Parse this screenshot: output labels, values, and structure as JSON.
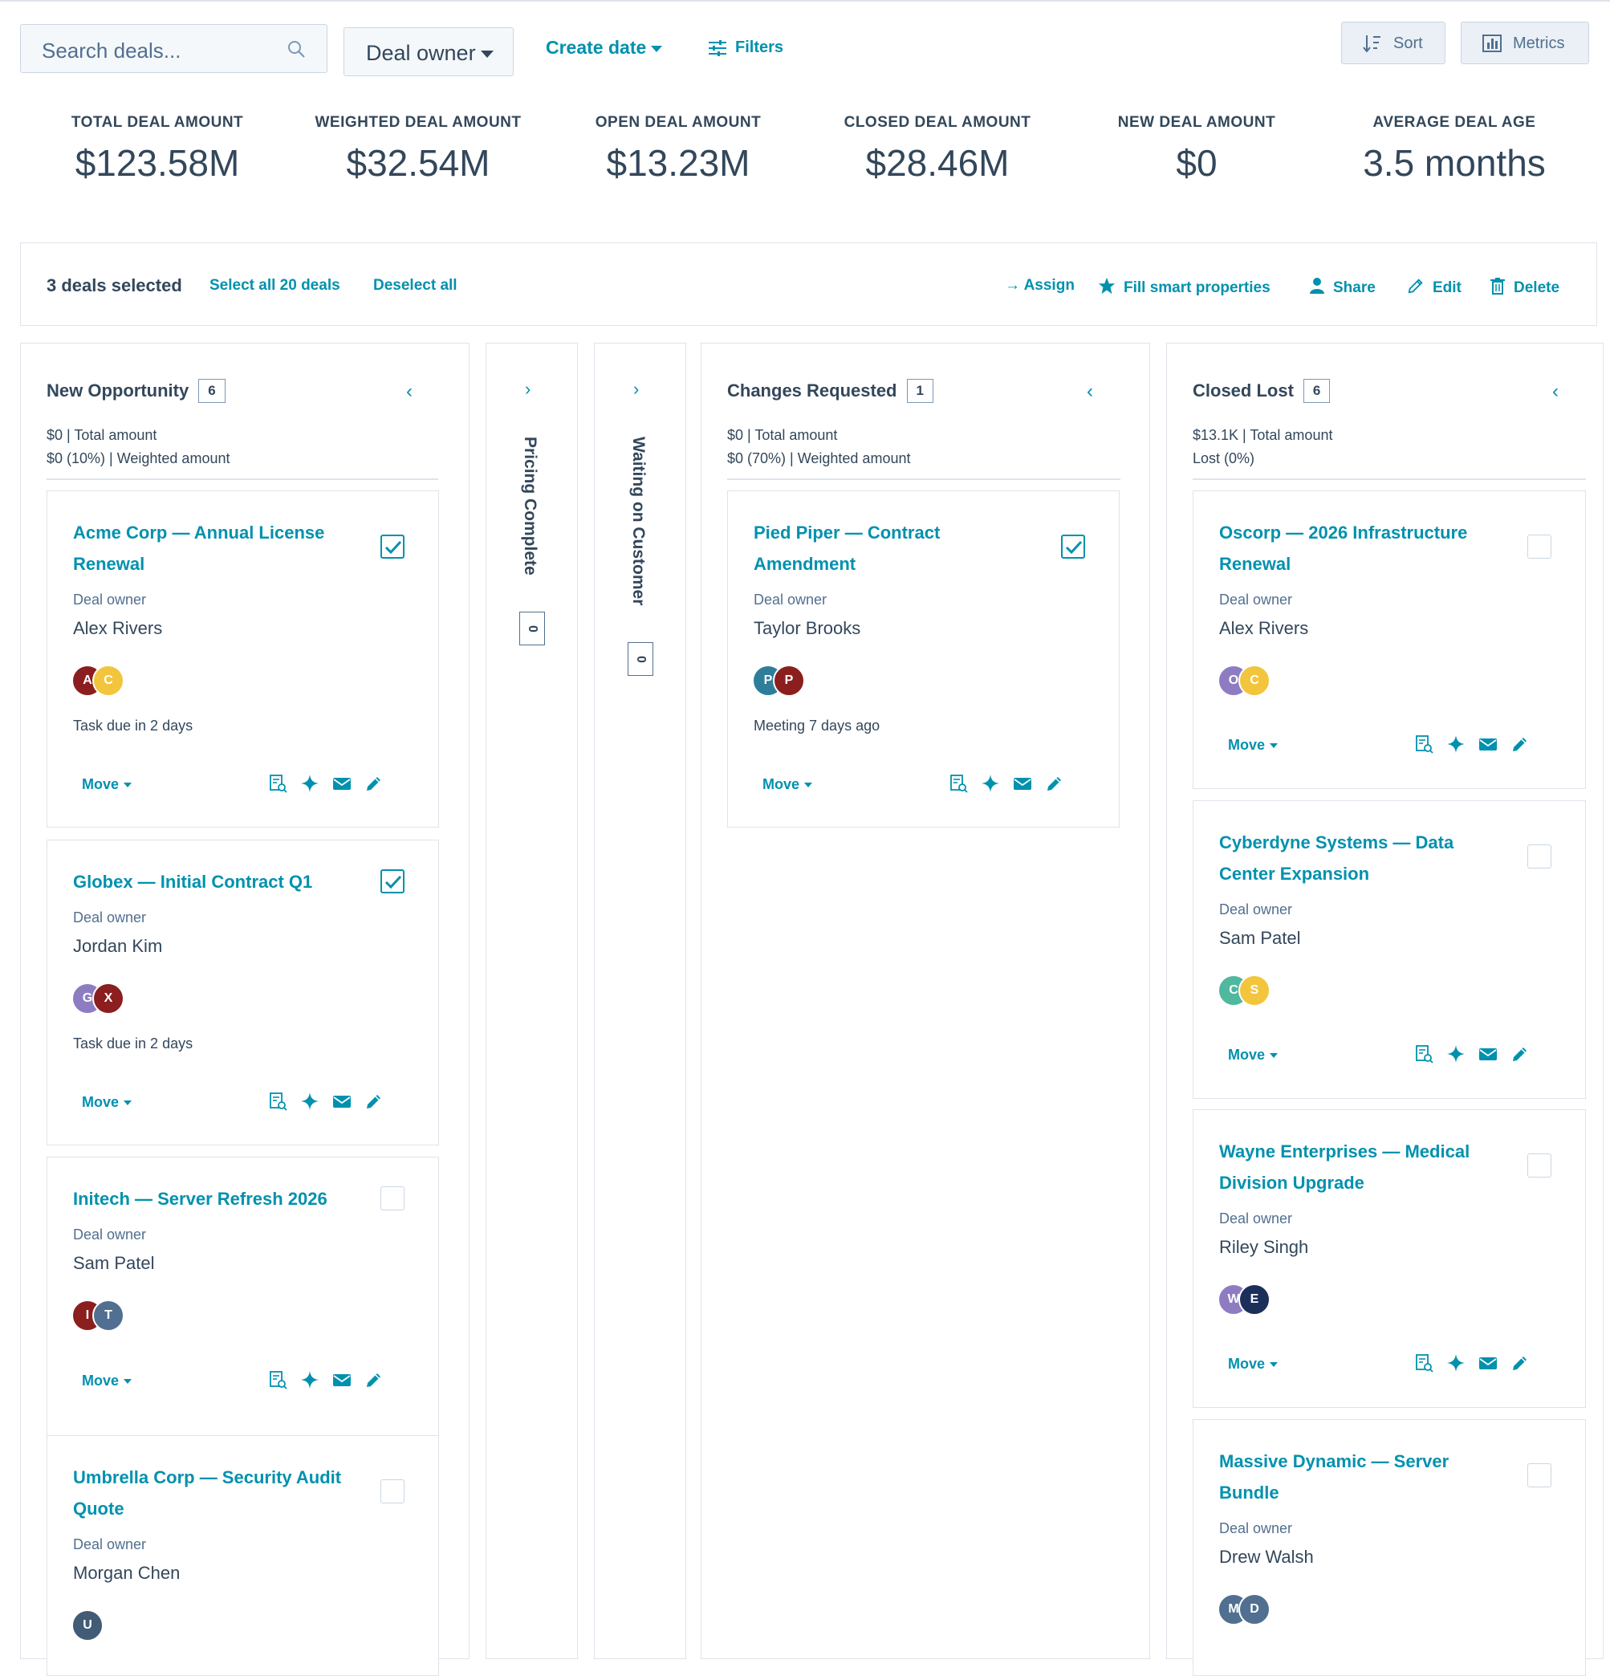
{
  "toolbar": {
    "search_placeholder": "Search deals...",
    "deal_owner": "Deal owner",
    "create_date": "Create date",
    "filters": "Filters",
    "sort": "Sort",
    "metrics": "Metrics"
  },
  "metrics": [
    {
      "label": "TOTAL DEAL AMOUNT",
      "value": "$123.58M"
    },
    {
      "label": "WEIGHTED DEAL AMOUNT",
      "value": "$32.54M"
    },
    {
      "label": "OPEN DEAL AMOUNT",
      "value": "$13.23M"
    },
    {
      "label": "CLOSED DEAL AMOUNT",
      "value": "$28.46M"
    },
    {
      "label": "NEW DEAL AMOUNT",
      "value": "$0"
    },
    {
      "label": "AVERAGE DEAL AGE",
      "value": "3.5 months"
    }
  ],
  "selection": {
    "count_text": "3 deals selected",
    "select_all": "Select all 20 deals",
    "deselect_all": "Deselect all",
    "assign": "→ Assign",
    "fill_smart": "Fill smart properties",
    "share": "Share",
    "edit": "Edit",
    "delete": "Delete"
  },
  "owner_label": "Deal owner",
  "move_label": "Move",
  "columns": {
    "new_opportunity": {
      "title": "New Opportunity",
      "count": "6",
      "total": "$0 | Total amount",
      "weighted": "$0 (10%) | Weighted amount",
      "cards": [
        {
          "title": "Acme Corp — Annual License Renewal",
          "owner": "Alex Rivers",
          "checked": true,
          "avatars": [
            {
              "letter": "A",
              "color": "#8b1e1e"
            },
            {
              "letter": "C",
              "color": "#f2c53d"
            }
          ],
          "activity": "Task due in 2 days"
        },
        {
          "title": "Globex — Initial Contract Q1",
          "owner": "Jordan Kim",
          "checked": true,
          "avatars": [
            {
              "letter": "G",
              "color": "#8e7cc3"
            },
            {
              "letter": "X",
              "color": "#8b1e1e"
            }
          ],
          "activity": "Task due in 2 days"
        },
        {
          "title": "Initech — Server Refresh 2026",
          "owner": "Sam Patel",
          "checked": false,
          "avatars": [
            {
              "letter": "I",
              "color": "#8b1e1e"
            },
            {
              "letter": "T",
              "color": "#516f90"
            }
          ],
          "activity": ""
        },
        {
          "title": "Umbrella Corp — Security Audit Quote",
          "owner": "Morgan Chen",
          "checked": false,
          "avatars": [
            {
              "letter": "U",
              "color": "#425b76"
            }
          ],
          "activity": ""
        }
      ]
    },
    "pricing_complete": {
      "title": "Pricing Complete",
      "count": "0"
    },
    "waiting_on_customer": {
      "title": "Waiting on Customer",
      "count": "0"
    },
    "changes_requested": {
      "title": "Changes Requested",
      "count": "1",
      "total": "$0 | Total amount",
      "weighted": "$0 (70%) | Weighted amount",
      "cards": [
        {
          "title": "Pied Piper — Contract Amendment",
          "owner": "Taylor Brooks",
          "checked": true,
          "avatars": [
            {
              "letter": "P",
              "color": "#2e7d9a"
            },
            {
              "letter": "P",
              "color": "#8b1e1e"
            }
          ],
          "activity": "Meeting 7 days ago"
        }
      ]
    },
    "closed_lost": {
      "title": "Closed Lost",
      "count": "6",
      "total": "$13.1K | Total amount",
      "weighted": "Lost (0%)",
      "cards": [
        {
          "title": "Oscorp — 2026 Infrastructure Renewal",
          "owner": "Alex Rivers",
          "checked": false,
          "avatars": [
            {
              "letter": "O",
              "color": "#8e7cc3"
            },
            {
              "letter": "C",
              "color": "#f2c53d"
            }
          ],
          "activity": ""
        },
        {
          "title": "Cyberdyne Systems — Data Center Expansion",
          "owner": "Sam Patel",
          "checked": false,
          "avatars": [
            {
              "letter": "C",
              "color": "#4fb89f"
            },
            {
              "letter": "S",
              "color": "#f2c53d"
            }
          ],
          "activity": ""
        },
        {
          "title": "Wayne Enterprises — Medical Division Upgrade",
          "owner": "Riley Singh",
          "checked": false,
          "avatars": [
            {
              "letter": "W",
              "color": "#8e7cc3"
            },
            {
              "letter": "E",
              "color": "#1c2f5a"
            }
          ],
          "activity": ""
        },
        {
          "title": "Massive Dynamic — Server Bundle",
          "owner": "Drew Walsh",
          "checked": false,
          "avatars": [
            {
              "letter": "M",
              "color": "#516f90"
            },
            {
              "letter": "D",
              "color": "#516f90"
            }
          ],
          "activity": ""
        }
      ]
    }
  }
}
